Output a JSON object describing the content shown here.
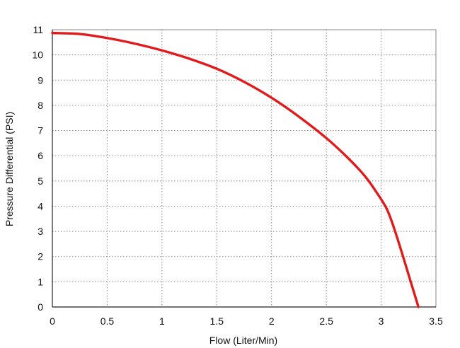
{
  "chart_data": {
    "type": "line",
    "title": "",
    "xlabel": "Flow (Liter/Min)",
    "ylabel": "Pressure Differential (PSI)",
    "xlim": [
      0,
      3.5
    ],
    "ylim": [
      0,
      11
    ],
    "grid": true,
    "x_ticks": [
      "0",
      "0.5",
      "1",
      "1.5",
      "2",
      "2.5",
      "3",
      "3.5"
    ],
    "y_ticks": [
      "0",
      "1",
      "2",
      "3",
      "4",
      "5",
      "6",
      "7",
      "8",
      "9",
      "10",
      "11"
    ],
    "series": [
      {
        "color": "#e31a1c",
        "points": [
          [
            0,
            10.87
          ],
          [
            0.25,
            10.83
          ],
          [
            0.5,
            10.67
          ],
          [
            0.75,
            10.45
          ],
          [
            1.0,
            10.18
          ],
          [
            1.25,
            9.85
          ],
          [
            1.5,
            9.45
          ],
          [
            1.75,
            8.93
          ],
          [
            2.0,
            8.3
          ],
          [
            2.25,
            7.55
          ],
          [
            2.5,
            6.7
          ],
          [
            2.7,
            5.9
          ],
          [
            2.85,
            5.2
          ],
          [
            2.95,
            4.6
          ],
          [
            3.05,
            3.9
          ],
          [
            3.12,
            3.1
          ],
          [
            3.2,
            2.0
          ],
          [
            3.27,
            1.0
          ],
          [
            3.34,
            0
          ]
        ]
      }
    ]
  }
}
